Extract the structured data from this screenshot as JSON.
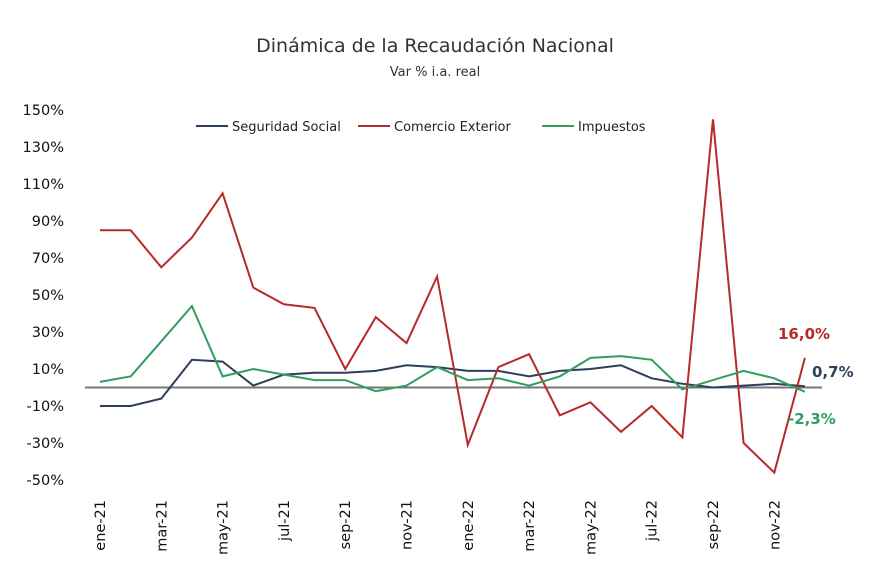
{
  "chart_data": {
    "type": "line",
    "title": "Dinámica de la Recaudación Nacional",
    "subtitle": "Var % i.a. real",
    "xlabel": "",
    "ylabel": "",
    "ylim": [
      -50,
      150
    ],
    "yticks": [
      -50,
      -30,
      -10,
      10,
      30,
      50,
      70,
      90,
      110,
      130,
      150
    ],
    "ytick_labels": [
      "-50%",
      "-30%",
      "-10%",
      "10%",
      "30%",
      "50%",
      "70%",
      "90%",
      "110%",
      "130%",
      "150%"
    ],
    "x": [
      "ene-21",
      "feb-21",
      "mar-21",
      "abr-21",
      "may-21",
      "jun-21",
      "jul-21",
      "ago-21",
      "sep-21",
      "oct-21",
      "nov-21",
      "dic-21",
      "ene-22",
      "feb-22",
      "mar-22",
      "abr-22",
      "may-22",
      "jun-22",
      "jul-22",
      "ago-22",
      "sep-22",
      "oct-22",
      "nov-22",
      "dic-22"
    ],
    "xtick_labels": [
      "ene-21",
      "mar-21",
      "may-21",
      "jul-21",
      "sep-21",
      "nov-21",
      "ene-22",
      "mar-22",
      "may-22",
      "jul-22",
      "sep-22",
      "nov-22"
    ],
    "grid": false,
    "zero_line": true,
    "legend_position": "top",
    "series": [
      {
        "name": "Seguridad Social",
        "color": "#2e3f5c",
        "values": [
          -10,
          -10,
          -6,
          15,
          14,
          1,
          7,
          8,
          8,
          9,
          12,
          11,
          9,
          9,
          6,
          9,
          10,
          12,
          5,
          2,
          0,
          1,
          2,
          0.7
        ],
        "end_label": "0,7%"
      },
      {
        "name": "Comercio Exterior",
        "color": "#b52a2a",
        "values": [
          85,
          85,
          65,
          81,
          105,
          54,
          45,
          43,
          10,
          38,
          24,
          60,
          -31,
          11,
          18,
          -15,
          -8,
          -24,
          -10,
          -27,
          145,
          -30,
          -46,
          16.0
        ],
        "end_label": "16,0%"
      },
      {
        "name": "Impuestos",
        "color": "#2f9e5e",
        "values": [
          3,
          6,
          25,
          44,
          6,
          10,
          7,
          4,
          4,
          -2,
          1,
          11,
          4,
          5,
          1,
          6,
          16,
          17,
          15,
          -1,
          4,
          9,
          5,
          -2.3
        ],
        "end_label": "-2,3%"
      }
    ]
  }
}
